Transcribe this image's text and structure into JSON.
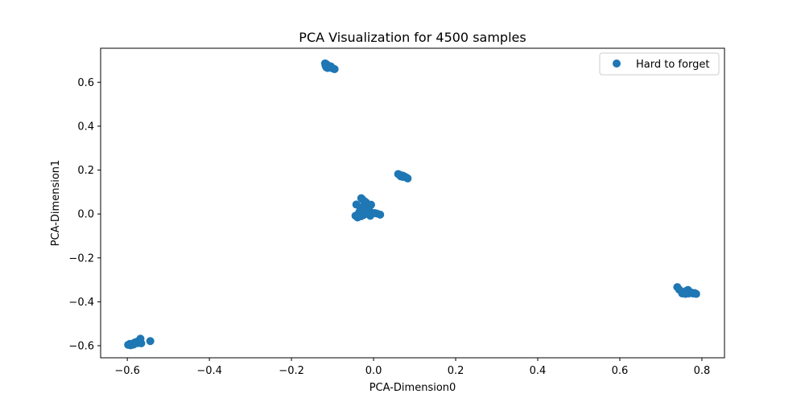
{
  "chart_data": {
    "type": "scatter",
    "title": "PCA Visualization for 4500 samples",
    "xlabel": "PCA-Dimension0",
    "ylabel": "PCA-Dimension1",
    "xlim": [
      -0.665,
      0.855
    ],
    "ylim": [
      -0.655,
      0.755
    ],
    "x_ticks": [
      -0.6,
      -0.4,
      -0.2,
      0.0,
      0.2,
      0.4,
      0.6,
      0.8
    ],
    "x_tick_labels": [
      "−0.6",
      "−0.4",
      "−0.2",
      "0.0",
      "0.2",
      "0.4",
      "0.6",
      "0.8"
    ],
    "y_ticks": [
      -0.6,
      -0.4,
      -0.2,
      0.0,
      0.2,
      0.4,
      0.6
    ],
    "y_tick_labels": [
      "−0.6",
      "−0.4",
      "−0.2",
      "0.0",
      "0.2",
      "0.4",
      "0.6"
    ],
    "grid": false,
    "legend_position": "top-right",
    "series": [
      {
        "name": "Hard to forget",
        "color": "#1f77b4",
        "points": [
          [
            -0.118,
            0.686
          ],
          [
            -0.115,
            0.682
          ],
          [
            -0.112,
            0.678
          ],
          [
            -0.11,
            0.674
          ],
          [
            -0.108,
            0.67
          ],
          [
            -0.115,
            0.668
          ],
          [
            -0.112,
            0.665
          ],
          [
            -0.106,
            0.668
          ],
          [
            -0.102,
            0.665
          ],
          [
            -0.098,
            0.662
          ],
          [
            -0.095,
            0.66
          ],
          [
            -0.117,
            0.676
          ],
          [
            -0.104,
            0.672
          ],
          [
            0.06,
            0.182
          ],
          [
            0.064,
            0.178
          ],
          [
            0.068,
            0.176
          ],
          [
            0.072,
            0.174
          ],
          [
            0.076,
            0.17
          ],
          [
            0.08,
            0.166
          ],
          [
            0.083,
            0.162
          ],
          [
            0.066,
            0.172
          ],
          [
            0.071,
            0.169
          ],
          [
            -0.03,
            0.072
          ],
          [
            -0.027,
            0.066
          ],
          [
            -0.022,
            0.058
          ],
          [
            -0.018,
            0.052
          ],
          [
            -0.042,
            0.043
          ],
          [
            -0.006,
            0.042
          ],
          [
            -0.025,
            0.035
          ],
          [
            -0.02,
            0.028
          ],
          [
            -0.032,
            0.018
          ],
          [
            -0.015,
            0.022
          ],
          [
            -0.01,
            0.014
          ],
          [
            -0.035,
            0.008
          ],
          [
            -0.028,
            0.004
          ],
          [
            -0.018,
            0.006
          ],
          [
            -0.005,
            0.004
          ],
          [
            0.002,
            0.004
          ],
          [
            0.008,
            0.002
          ],
          [
            0.016,
            -0.003
          ],
          [
            -0.04,
            -0.006
          ],
          [
            -0.034,
            -0.004
          ],
          [
            -0.024,
            -0.004
          ],
          [
            -0.012,
            0.0
          ],
          [
            -0.039,
            -0.016
          ],
          [
            -0.044,
            -0.008
          ],
          [
            -0.03,
            -0.01
          ],
          [
            -0.008,
            -0.008
          ],
          [
            0.74,
            -0.333
          ],
          [
            0.745,
            -0.345
          ],
          [
            0.752,
            -0.362
          ],
          [
            0.758,
            -0.356
          ],
          [
            0.762,
            -0.35
          ],
          [
            0.766,
            -0.346
          ],
          [
            0.77,
            -0.355
          ],
          [
            0.774,
            -0.358
          ],
          [
            0.778,
            -0.362
          ],
          [
            0.782,
            -0.36
          ],
          [
            0.786,
            -0.364
          ],
          [
            0.768,
            -0.362
          ],
          [
            0.76,
            -0.364
          ],
          [
            -0.598,
            -0.596
          ],
          [
            -0.594,
            -0.592
          ],
          [
            -0.59,
            -0.594
          ],
          [
            -0.586,
            -0.59
          ],
          [
            -0.582,
            -0.586
          ],
          [
            -0.578,
            -0.583
          ],
          [
            -0.574,
            -0.58
          ],
          [
            -0.57,
            -0.577
          ],
          [
            -0.568,
            -0.568
          ],
          [
            -0.566,
            -0.589
          ],
          [
            -0.544,
            -0.579
          ],
          [
            -0.592,
            -0.598
          ],
          [
            -0.585,
            -0.595
          ],
          [
            -0.575,
            -0.588
          ]
        ]
      }
    ]
  }
}
